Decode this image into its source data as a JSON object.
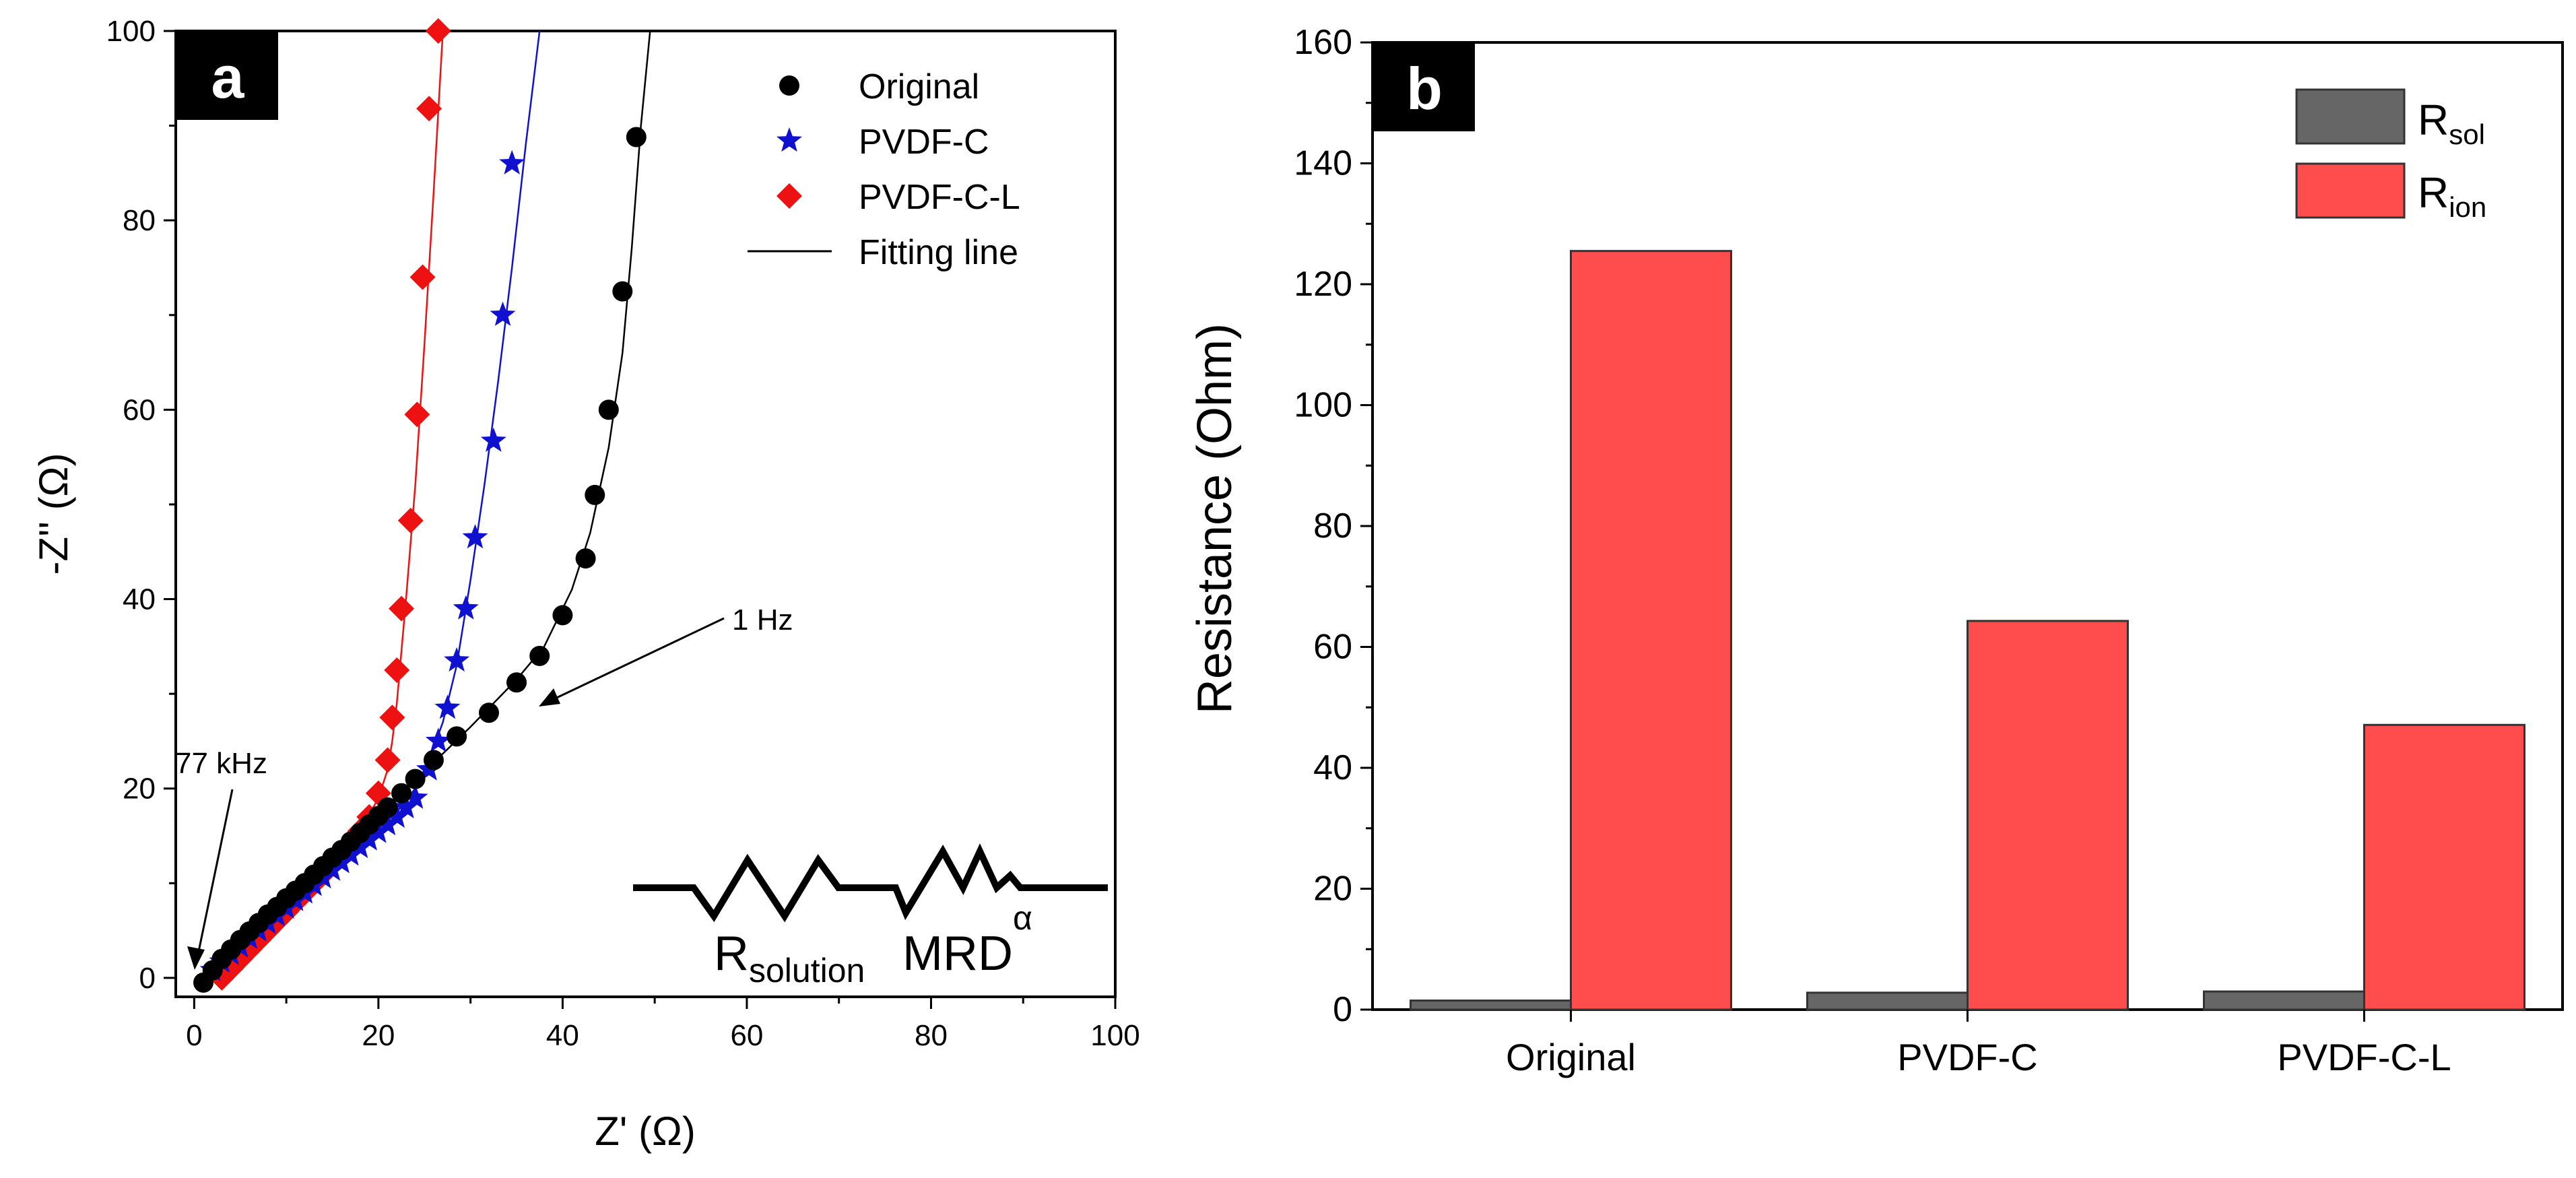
{
  "chart_data": [
    {
      "panel": "a",
      "type": "scatter",
      "xlabel": "Z' (Ω)",
      "ylabel": "-Z'' (Ω)",
      "xlim": [
        -2,
        100
      ],
      "ylim": [
        -2,
        100
      ],
      "xticks": [
        0,
        20,
        40,
        60,
        80,
        100
      ],
      "yticks": [
        0,
        20,
        40,
        60,
        80,
        100
      ],
      "legend_position": "top-right",
      "fit_label": "Fitting line",
      "series": [
        {
          "name": "Original",
          "color": "#000000",
          "marker": "circle",
          "x": [
            1.0,
            2.0,
            3.0,
            4.0,
            5.0,
            6.0,
            7.0,
            8.0,
            9.0,
            10.0,
            11.0,
            12.0,
            13.0,
            14.0,
            15.0,
            16.0,
            17.0,
            18.0,
            19.0,
            20.0,
            21.0,
            22.5,
            24.0,
            26.0,
            28.5,
            32.0,
            35.0,
            37.5,
            40.0,
            42.5,
            43.5,
            45.0,
            46.5,
            48.0
          ],
          "y": [
            -0.5,
            0.8,
            2.0,
            3.0,
            4.0,
            4.9,
            5.8,
            6.7,
            7.5,
            8.4,
            9.2,
            10.0,
            10.9,
            11.8,
            12.7,
            13.5,
            14.4,
            15.3,
            16.2,
            17.1,
            18.0,
            19.5,
            21.0,
            23.0,
            25.5,
            28.0,
            31.2,
            34.0,
            38.3,
            44.3,
            51.0,
            60.0,
            72.5,
            88.8
          ],
          "fit_x": [
            0.8,
            5,
            10,
            15,
            20,
            25,
            30,
            35,
            38,
            41,
            43,
            45,
            46.5,
            47.5,
            48.5,
            49.5
          ],
          "fit_y": [
            -0.8,
            4.0,
            8.4,
            12.7,
            17.1,
            21.8,
            26.5,
            31.5,
            35.0,
            41.0,
            47.0,
            56.0,
            66.0,
            77.0,
            90.0,
            100.0
          ]
        },
        {
          "name": "PVDF-C",
          "color": "#1010d0",
          "marker": "star",
          "x": [
            2.0,
            3.0,
            4.0,
            5.0,
            6.0,
            7.0,
            8.0,
            9.0,
            10.0,
            11.0,
            12.0,
            13.0,
            14.0,
            15.0,
            16.0,
            17.0,
            18.0,
            19.0,
            20.0,
            21.0,
            22.0,
            23.0,
            24.0,
            25.5,
            26.5,
            27.5,
            28.5,
            29.5,
            30.5,
            32.5,
            33.5,
            34.5
          ],
          "y": [
            0.8,
            1.7,
            2.5,
            3.3,
            4.2,
            5.0,
            5.8,
            6.6,
            7.4,
            8.2,
            9.0,
            9.8,
            10.6,
            11.4,
            12.2,
            13.0,
            13.8,
            14.6,
            15.4,
            16.2,
            17.0,
            18.0,
            19.0,
            22.0,
            25.0,
            28.5,
            33.5,
            39.0,
            46.5,
            56.7,
            70.0,
            86.0
          ],
          "fit_x": [
            2,
            6,
            10,
            14,
            18,
            22,
            24,
            25.5,
            27,
            28.5,
            30,
            31.5,
            33,
            34.5,
            36,
            37.5
          ],
          "fit_y": [
            0.6,
            4.0,
            7.3,
            10.6,
            14.0,
            17.5,
            20.0,
            23.0,
            27.0,
            33.0,
            42.0,
            52.0,
            63.0,
            75.0,
            88.0,
            100.0
          ]
        },
        {
          "name": "PVDF-C-L",
          "color": "#ee1111",
          "marker": "diamond",
          "x": [
            3.0,
            4.0,
            5.0,
            6.0,
            7.0,
            8.0,
            9.0,
            10.0,
            11.0,
            12.0,
            13.0,
            14.0,
            15.0,
            16.0,
            17.0,
            18.0,
            19.0,
            20.0,
            21.0,
            21.5,
            22.0,
            22.5,
            23.5,
            24.2,
            24.8,
            25.5,
            26.5
          ],
          "y": [
            0.0,
            1.0,
            2.0,
            3.0,
            4.0,
            5.0,
            6.0,
            7.0,
            8.0,
            9.0,
            10.0,
            11.0,
            12.0,
            13.0,
            14.0,
            15.5,
            17.0,
            19.5,
            23.0,
            27.5,
            32.5,
            39.0,
            48.3,
            59.5,
            74.0,
            91.8,
            100.0
          ],
          "fit_x": [
            3,
            6,
            9,
            12,
            15,
            18,
            20,
            21,
            21.5,
            22,
            23,
            24,
            25,
            26,
            27
          ],
          "fit_y": [
            0.0,
            3.0,
            6.0,
            9.0,
            12.0,
            15.5,
            19.0,
            22.0,
            25.0,
            29.0,
            40.0,
            52.0,
            67.0,
            83.0,
            100.0
          ]
        }
      ],
      "annotations": [
        {
          "text": "77 kHz",
          "target_x": 0.8,
          "target_y": -0.5
        },
        {
          "text": "1 Hz",
          "target_x": 36.5,
          "target_y": 31.5
        }
      ],
      "circuit": {
        "element_1": "R",
        "element_1_subscript": "solution",
        "element_2": "MRD",
        "element_2_superscript": "α"
      }
    },
    {
      "panel": "b",
      "type": "bar",
      "ylabel": "Resistance (Ohm)",
      "xlabel": "",
      "categories": [
        "Original",
        "PVDF-C",
        "PVDF-C-L"
      ],
      "ylim": [
        0,
        160
      ],
      "yticks": [
        0,
        20,
        40,
        60,
        80,
        100,
        120,
        140,
        160
      ],
      "legend_position": "top-right",
      "series": [
        {
          "name": "R",
          "subscript": "sol",
          "color": "#666666",
          "values": [
            1.5,
            2.8,
            3.0
          ]
        },
        {
          "name": "R",
          "subscript": "ion",
          "color": "#ff4c4c",
          "values": [
            125.5,
            64.3,
            47.1
          ]
        }
      ]
    }
  ]
}
